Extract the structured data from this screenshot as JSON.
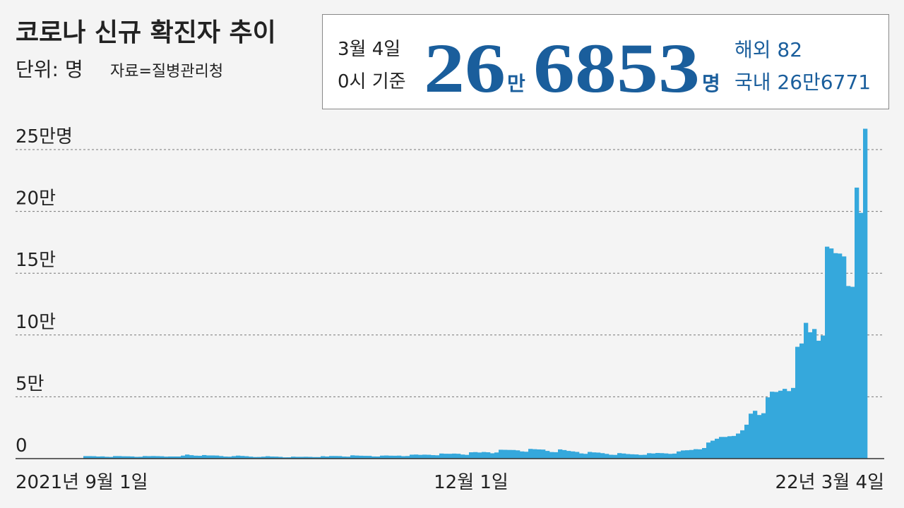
{
  "chart_data": {
    "type": "bar",
    "title": "코로나 신규 확진자 추이",
    "unit": "단위: 명",
    "source": "자료=질병관리청",
    "headline": {
      "date": "3월 4일",
      "basis": "0시 기준",
      "big_1": "26",
      "unit_1": "만",
      "big_2": "6853",
      "unit_2": "명",
      "overseas": "해외 82",
      "domestic": "국내 26만6771"
    },
    "color": "#35a8dc",
    "grid": true,
    "ylim": [
      0,
      250000
    ],
    "yticks": [
      {
        "value": 0,
        "label": "0"
      },
      {
        "value": 50000,
        "label": "5만"
      },
      {
        "value": 100000,
        "label": "10만"
      },
      {
        "value": 150000,
        "label": "15만"
      },
      {
        "value": 200000,
        "label": "20만"
      },
      {
        "value": 250000,
        "label": "25만명"
      }
    ],
    "categories": [
      "2021년 9월 1일",
      null,
      null,
      null,
      null,
      null,
      null,
      null,
      null,
      null,
      null,
      null,
      null,
      null,
      null,
      null,
      null,
      null,
      null,
      null,
      null,
      null,
      null,
      null,
      null,
      null,
      null,
      null,
      null,
      null,
      null,
      null,
      null,
      null,
      null,
      null,
      null,
      null,
      null,
      null,
      null,
      null,
      null,
      null,
      null,
      null,
      null,
      null,
      null,
      null,
      null,
      null,
      null,
      null,
      null,
      null,
      null,
      null,
      null,
      null,
      null,
      null,
      null,
      null,
      null,
      null,
      null,
      null,
      null,
      null,
      null,
      null,
      null,
      null,
      null,
      null,
      null,
      null,
      null,
      null,
      null,
      null,
      null,
      null,
      null,
      null,
      null,
      null,
      null,
      null,
      null,
      "12월 1일",
      null,
      null,
      null,
      null,
      null,
      null,
      null,
      null,
      null,
      null,
      null,
      null,
      null,
      null,
      null,
      null,
      null,
      null,
      null,
      null,
      null,
      null,
      null,
      null,
      null,
      null,
      null,
      null,
      null,
      null,
      null,
      null,
      null,
      null,
      null,
      null,
      null,
      null,
      null,
      null,
      null,
      null,
      null,
      null,
      null,
      null,
      null,
      null,
      null,
      null,
      null,
      null,
      null,
      null,
      null,
      null,
      null,
      null,
      null,
      null,
      null,
      null,
      null,
      null,
      null,
      null,
      null,
      null,
      null,
      null,
      null,
      null,
      null,
      null,
      null,
      null,
      null,
      null,
      null,
      null,
      null,
      null,
      null,
      null,
      null,
      null,
      null,
      null,
      null,
      null,
      null,
      null,
      "22년 3월 4일"
    ],
    "values": [
      2024,
      2024,
      1961,
      1709,
      1804,
      1490,
      1375,
      2050,
      2049,
      1892,
      1865,
      1755,
      1433,
      1497,
      2080,
      2008,
      2087,
      2008,
      1909,
      1605,
      1729,
      1720,
      1716,
      2434,
      3270,
      2771,
      2383,
      2289,
      2885,
      2564,
      2564,
      2486,
      2085,
      1673,
      1575,
      2028,
      2427,
      2175,
      1953,
      1594,
      1297,
      1347,
      1584,
      1940,
      1684,
      1617,
      1420,
      1050,
      1073,
      1571,
      1441,
      1439,
      1508,
      1423,
      1266,
      1266,
      1952,
      1710,
      2111,
      2104,
      2061,
      1686,
      1589,
      2667,
      2482,
      2344,
      2248,
      2224,
      1758,
      1715,
      2425,
      2520,
      2368,
      2324,
      2419,
      2006,
      2125,
      3187,
      3292,
      3034,
      3205,
      3120,
      2827,
      2699,
      4116,
      3938,
      3899,
      4068,
      3925,
      3309,
      3032,
      5123,
      5266,
      4944,
      5352,
      5128,
      4325,
      4954,
      7175,
      7102,
      7022,
      6977,
      6689,
      5817,
      5567,
      7850,
      7622,
      7435,
      7314,
      6236,
      5318,
      5202,
      7456,
      6919,
      6233,
      5841,
      5419,
      4207,
      3865,
      5409,
      5037,
      4875,
      4415,
      3833,
      3130,
      3022,
      4444,
      4126,
      3713,
      3511,
      3376,
      3005,
      3094,
      4385,
      4167,
      4542,
      4423,
      4194,
      3859,
      4071,
      5805,
      6603,
      6769,
      7009,
      7630,
      7513,
      8571,
      13012,
      14518,
      16096,
      17542,
      17532,
      18096,
      18342,
      20270,
      22907,
      27443,
      36362,
      38691,
      35286,
      36719,
      49567,
      54122,
      53926,
      54941,
      56431,
      54619,
      57177,
      90443,
      93135,
      109831,
      102211,
      104829,
      95362,
      99573,
      171452,
      170016,
      166209,
      165890,
      163566,
      139626,
      138993,
      219241,
      198803,
      266853
    ]
  }
}
